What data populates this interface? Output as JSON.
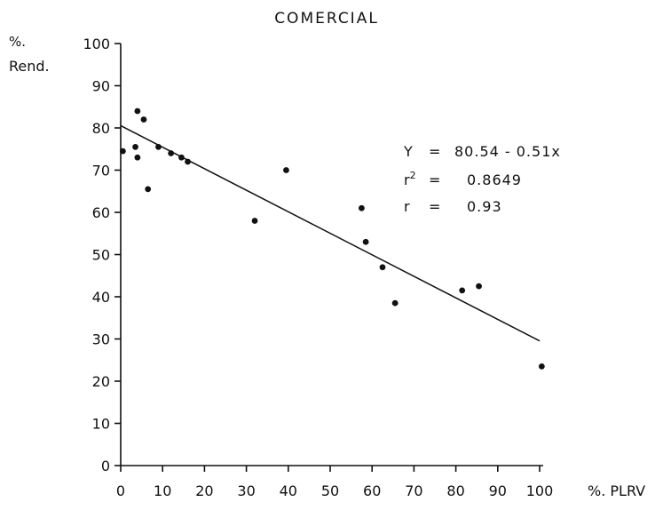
{
  "chart_data": {
    "type": "scatter",
    "title": "COMERCIAL",
    "xlabel": "%. PLRV",
    "ylabel_line1": "%.",
    "ylabel_line2": "Rend.",
    "xlim": [
      0,
      100
    ],
    "ylim": [
      0,
      100
    ],
    "x_ticks": [
      0,
      10,
      20,
      30,
      40,
      50,
      60,
      70,
      80,
      90,
      100
    ],
    "y_ticks": [
      0,
      10,
      20,
      30,
      40,
      50,
      60,
      70,
      80,
      90,
      100
    ],
    "x_tick_labels": [
      "0",
      "10",
      "20",
      "30",
      "40",
      "50",
      "60",
      "70",
      "80",
      "90",
      "100"
    ],
    "y_tick_labels": [
      "0",
      "10",
      "20",
      "30",
      "40",
      "50",
      "60",
      "70",
      "80",
      "90",
      "100"
    ],
    "grid": false,
    "points": [
      {
        "x": 0.5,
        "y": 74.5
      },
      {
        "x": 3.5,
        "y": 75.5
      },
      {
        "x": 4,
        "y": 73
      },
      {
        "x": 4,
        "y": 84
      },
      {
        "x": 5.5,
        "y": 82
      },
      {
        "x": 6.5,
        "y": 65.5
      },
      {
        "x": 9,
        "y": 75.5
      },
      {
        "x": 12,
        "y": 74
      },
      {
        "x": 14.5,
        "y": 73
      },
      {
        "x": 16,
        "y": 72
      },
      {
        "x": 32,
        "y": 58
      },
      {
        "x": 39.5,
        "y": 70
      },
      {
        "x": 57.5,
        "y": 61
      },
      {
        "x": 58.5,
        "y": 53
      },
      {
        "x": 62.5,
        "y": 47
      },
      {
        "x": 65.5,
        "y": 38.5
      },
      {
        "x": 81.5,
        "y": 41.5
      },
      {
        "x": 85.5,
        "y": 42.5
      },
      {
        "x": 100.5,
        "y": 23.5
      }
    ],
    "regression": {
      "intercept": 80.54,
      "slope": -0.51,
      "x_range": [
        0,
        100
      ]
    },
    "annotations": {
      "equation_lhs": "Y",
      "equation_eq": "=",
      "equation_rhs": "80.54 - 0.51x",
      "r2_base": "r",
      "r2_sup": "2",
      "r2_eq": "=",
      "r2_value": "0.8649",
      "r_lhs": "r",
      "r_eq": "=",
      "r_value": "0.93"
    },
    "colors": {
      "ink": "#111111",
      "background": "#ffffff"
    }
  }
}
